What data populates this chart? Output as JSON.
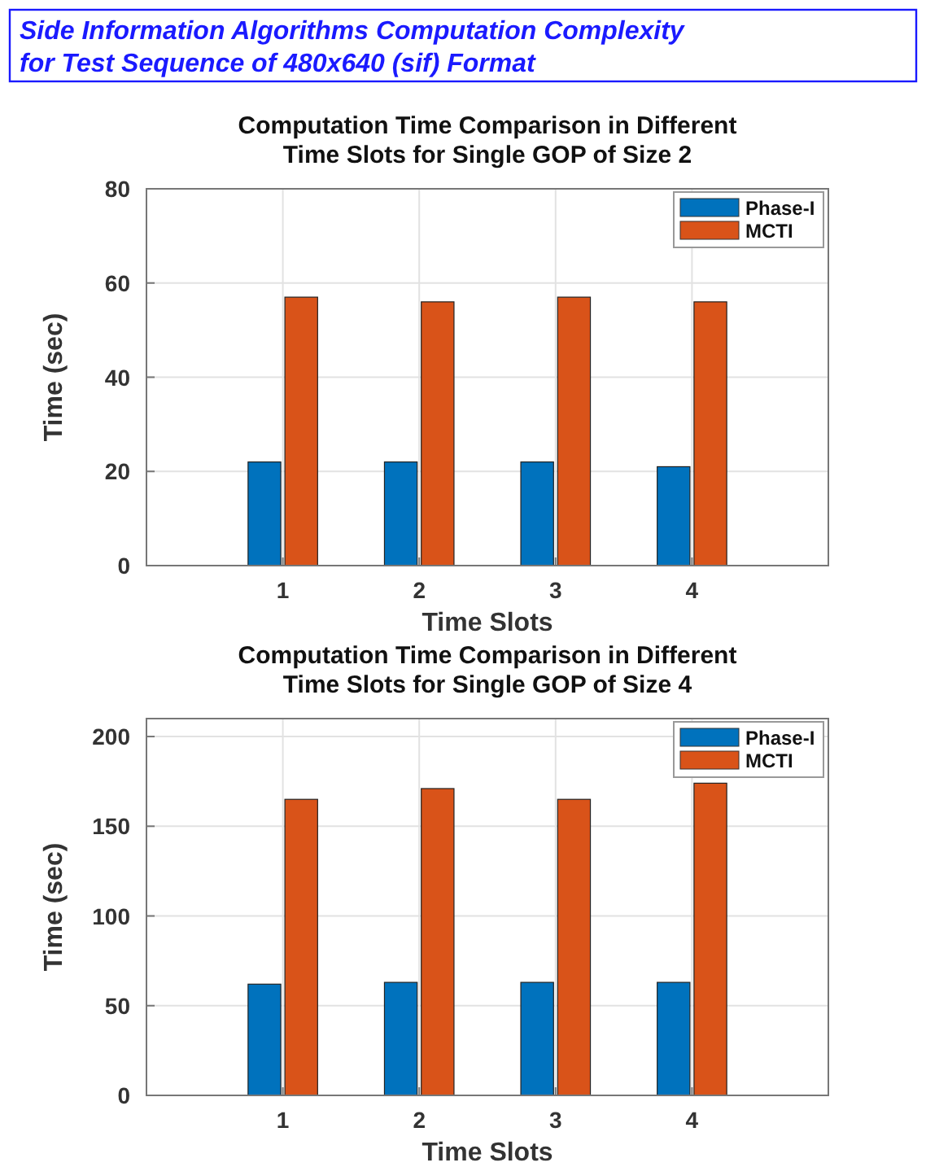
{
  "chart_data": [
    {
      "type": "bar",
      "title": "Computation Time Comparison in Different\nTime Slots for Single GOP of Size 2",
      "annotations": [
        "Side Information Algorithms Computation Complexity\nfor Test Sequence of 480x640 (sif) Format"
      ],
      "xlabel": "Time Slots",
      "ylabel": "Time (sec)",
      "x": [
        1,
        2,
        3,
        4
      ],
      "xlim": [
        0,
        5
      ],
      "xticks": [
        1,
        2,
        3,
        4
      ],
      "ylim": [
        0,
        80
      ],
      "yticks": [
        0,
        20,
        40,
        60,
        80
      ],
      "grid": true,
      "legend": "top right",
      "series": [
        {
          "name": "Phase-I",
          "color": "#0072bd",
          "values": [
            22,
            22,
            22,
            21
          ]
        },
        {
          "name": "MCTI",
          "color": "#d95319",
          "values": [
            57,
            56,
            57,
            56
          ]
        }
      ]
    },
    {
      "type": "bar",
      "title": "Computation Time Comparison in Different\nTime Slots for Single GOP of Size 4",
      "xlabel": "Time Slots",
      "ylabel": "Time (sec)",
      "x": [
        1,
        2,
        3,
        4
      ],
      "xlim": [
        0,
        5
      ],
      "xticks": [
        1,
        2,
        3,
        4
      ],
      "ylim": [
        0,
        210
      ],
      "yticks": [
        0,
        50,
        100,
        150,
        200
      ],
      "grid": true,
      "legend": "top right",
      "series": [
        {
          "name": "Phase-I",
          "color": "#0072bd",
          "values": [
            62,
            63,
            63,
            63
          ]
        },
        {
          "name": "MCTI",
          "color": "#d95319",
          "values": [
            165,
            171,
            165,
            174
          ]
        }
      ]
    }
  ]
}
